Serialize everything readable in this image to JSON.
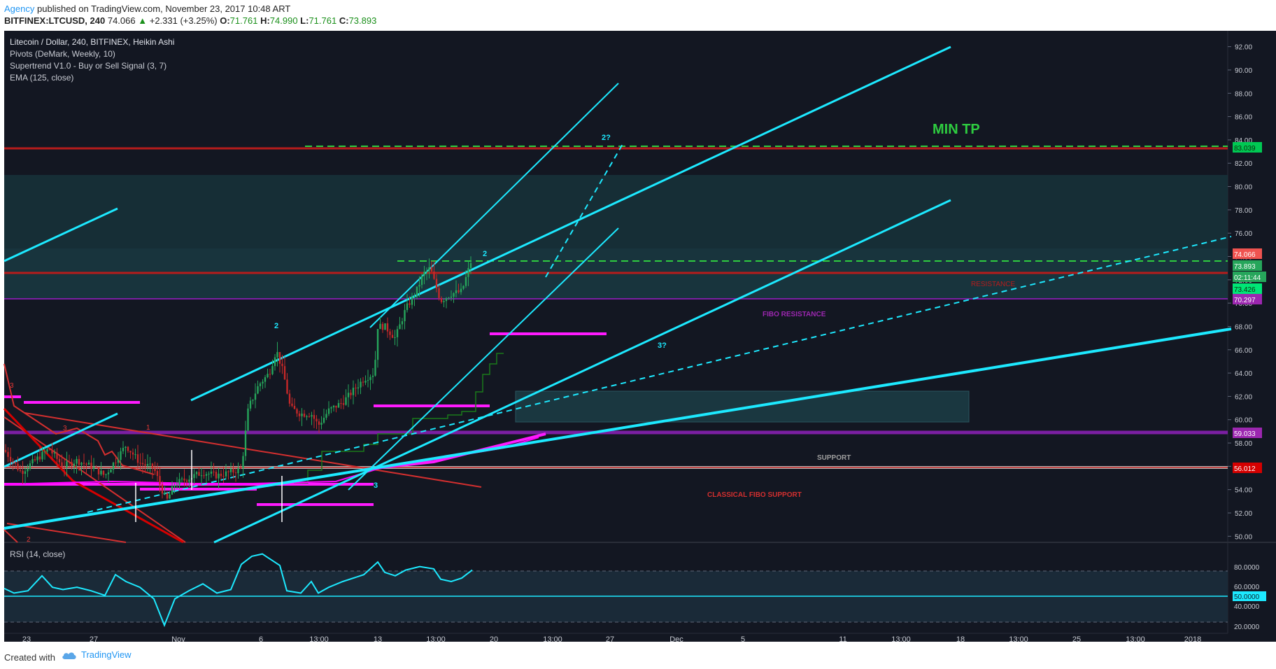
{
  "header": {
    "author": "Agency",
    "published_text": "published on TradingView.com, November 23, 2017 10:48 ART",
    "symbol": "BITFINEX:LTCUSD, 240",
    "last": "74.066",
    "change": "+2.331 (+3.25%)",
    "o_label": "O:",
    "o_value": "71.761",
    "h_label": "H:",
    "h_value": "74.990",
    "l_label": "L:",
    "l_value": "71.761",
    "c_label": "C:",
    "c_value": "73.893"
  },
  "legend": {
    "line1": "Litecoin / Dollar, 240, BITFINEX, Heikin Ashi",
    "line2": "Pivots (DeMark, Weekly, 10)",
    "line3": "Supertrend V1.0 - Buy or Sell Signal (3, 7)",
    "line4": "EMA (125, close)"
  },
  "annotations": {
    "min_tp": "MIN TP",
    "resistance": "RESISTANCE",
    "fibo_resistance": "FIBO RESISTANCE",
    "support": "SUPPORT",
    "classical_fibo_support": "CLASSICAL FIBO SUPPORT",
    "wave_2_left": "2",
    "wave_2_top": "2",
    "wave_2q": "2?",
    "wave_3q": "3?",
    "wave_3": "3",
    "red_3a": "3",
    "red_3b": "3",
    "red_1": "1",
    "red_2": "2"
  },
  "rsi": {
    "label": "RSI (14, close)",
    "value_badge": "50.0000",
    "ticks": [
      "80.0000",
      "60.0000",
      "40.0000",
      "20.0000"
    ]
  },
  "price_badges": {
    "min_tp": "83.039",
    "last": "74.066",
    "close": "73.893",
    "countdown": "02:11:44",
    "ema": "73.426",
    "fibo": "70.297",
    "purple_support": "59.033",
    "support": "56.012"
  },
  "x_axis_labels": [
    "23",
    "27",
    "Nov",
    "6",
    "13:00",
    "13",
    "13:00",
    "20",
    "13:00",
    "27",
    "Dec",
    "5",
    "11",
    "13:00",
    "18",
    "13:00",
    "25",
    "13:00",
    "2018"
  ],
  "footer": {
    "created_with": "Created with",
    "brand": "TradingView"
  },
  "colors": {
    "background": "#131722",
    "cyan": "#00e5ff",
    "red": "#b71c1c",
    "green_dash": "#2ecc40",
    "magenta": "#ff00ff",
    "purple": "#7b1fa2",
    "bull": "#26a65b",
    "bear": "#c62828"
  },
  "chart_data": {
    "type": "candlestick",
    "title": "Litecoin / Dollar, 240, BITFINEX, Heikin Ashi",
    "y_ticks": [
      50,
      52,
      54,
      56,
      58,
      60,
      62,
      64,
      66,
      68,
      70,
      72,
      74,
      76,
      78,
      80,
      82,
      84,
      86,
      88,
      90,
      92
    ],
    "ylim": [
      49.6,
      93
    ],
    "grid": false,
    "levels": {
      "min_tp": 83.039,
      "resistance": 72.9,
      "fibo_resistance": 70.297,
      "purple_support": 59.033,
      "support": 56.012
    },
    "price_path": [
      [
        6,
        57.4
      ],
      [
        30,
        55.5
      ],
      [
        50,
        56.5
      ],
      [
        70,
        57.5
      ],
      [
        90,
        56.0
      ],
      [
        110,
        56.5
      ],
      [
        130,
        56.0
      ],
      [
        150,
        55.2
      ],
      [
        165,
        56.5
      ],
      [
        180,
        57.8
      ],
      [
        200,
        56.3
      ],
      [
        220,
        55.8
      ],
      [
        238,
        53.0
      ],
      [
        250,
        54.5
      ],
      [
        270,
        55.0
      ],
      [
        290,
        55.5
      ],
      [
        310,
        55.2
      ],
      [
        330,
        55.5
      ],
      [
        345,
        55.8
      ],
      [
        355,
        61.0
      ],
      [
        370,
        63.0
      ],
      [
        385,
        64.0
      ],
      [
        395,
        66.0
      ],
      [
        405,
        64.0
      ],
      [
        415,
        61.0
      ],
      [
        430,
        60.5
      ],
      [
        445,
        60.5
      ],
      [
        455,
        59.5
      ],
      [
        470,
        60.8
      ],
      [
        490,
        61.5
      ],
      [
        505,
        62.5
      ],
      [
        520,
        63.5
      ],
      [
        535,
        64.0
      ],
      [
        540,
        68.0
      ],
      [
        550,
        68.0
      ],
      [
        565,
        67.0
      ],
      [
        580,
        69.5
      ],
      [
        595,
        71.0
      ],
      [
        605,
        72.5
      ],
      [
        615,
        73.0
      ],
      [
        620,
        72.0
      ],
      [
        630,
        70.2
      ],
      [
        645,
        70.8
      ],
      [
        660,
        71.0
      ],
      [
        675,
        73.9
      ]
    ],
    "rsi": {
      "name": "RSI (14, close)",
      "ylim": [
        15,
        88
      ],
      "overbought": 75,
      "oversold": 25,
      "mid": 50,
      "path": [
        [
          6,
          54
        ],
        [
          20,
          50
        ],
        [
          40,
          52
        ],
        [
          60,
          65
        ],
        [
          75,
          55
        ],
        [
          90,
          53
        ],
        [
          110,
          55
        ],
        [
          130,
          52
        ],
        [
          150,
          48
        ],
        [
          165,
          66
        ],
        [
          180,
          60
        ],
        [
          200,
          55
        ],
        [
          220,
          45
        ],
        [
          235,
          22
        ],
        [
          250,
          45
        ],
        [
          270,
          52
        ],
        [
          290,
          58
        ],
        [
          310,
          50
        ],
        [
          330,
          53
        ],
        [
          345,
          75
        ],
        [
          360,
          82
        ],
        [
          375,
          84
        ],
        [
          390,
          78
        ],
        [
          400,
          74
        ],
        [
          410,
          52
        ],
        [
          430,
          50
        ],
        [
          445,
          60
        ],
        [
          455,
          50
        ],
        [
          470,
          55
        ],
        [
          490,
          60
        ],
        [
          520,
          66
        ],
        [
          540,
          77
        ],
        [
          550,
          68
        ],
        [
          565,
          65
        ],
        [
          580,
          70
        ],
        [
          600,
          73
        ],
        [
          620,
          71
        ],
        [
          630,
          62
        ],
        [
          645,
          60
        ],
        [
          660,
          63
        ],
        [
          675,
          70
        ]
      ]
    }
  }
}
